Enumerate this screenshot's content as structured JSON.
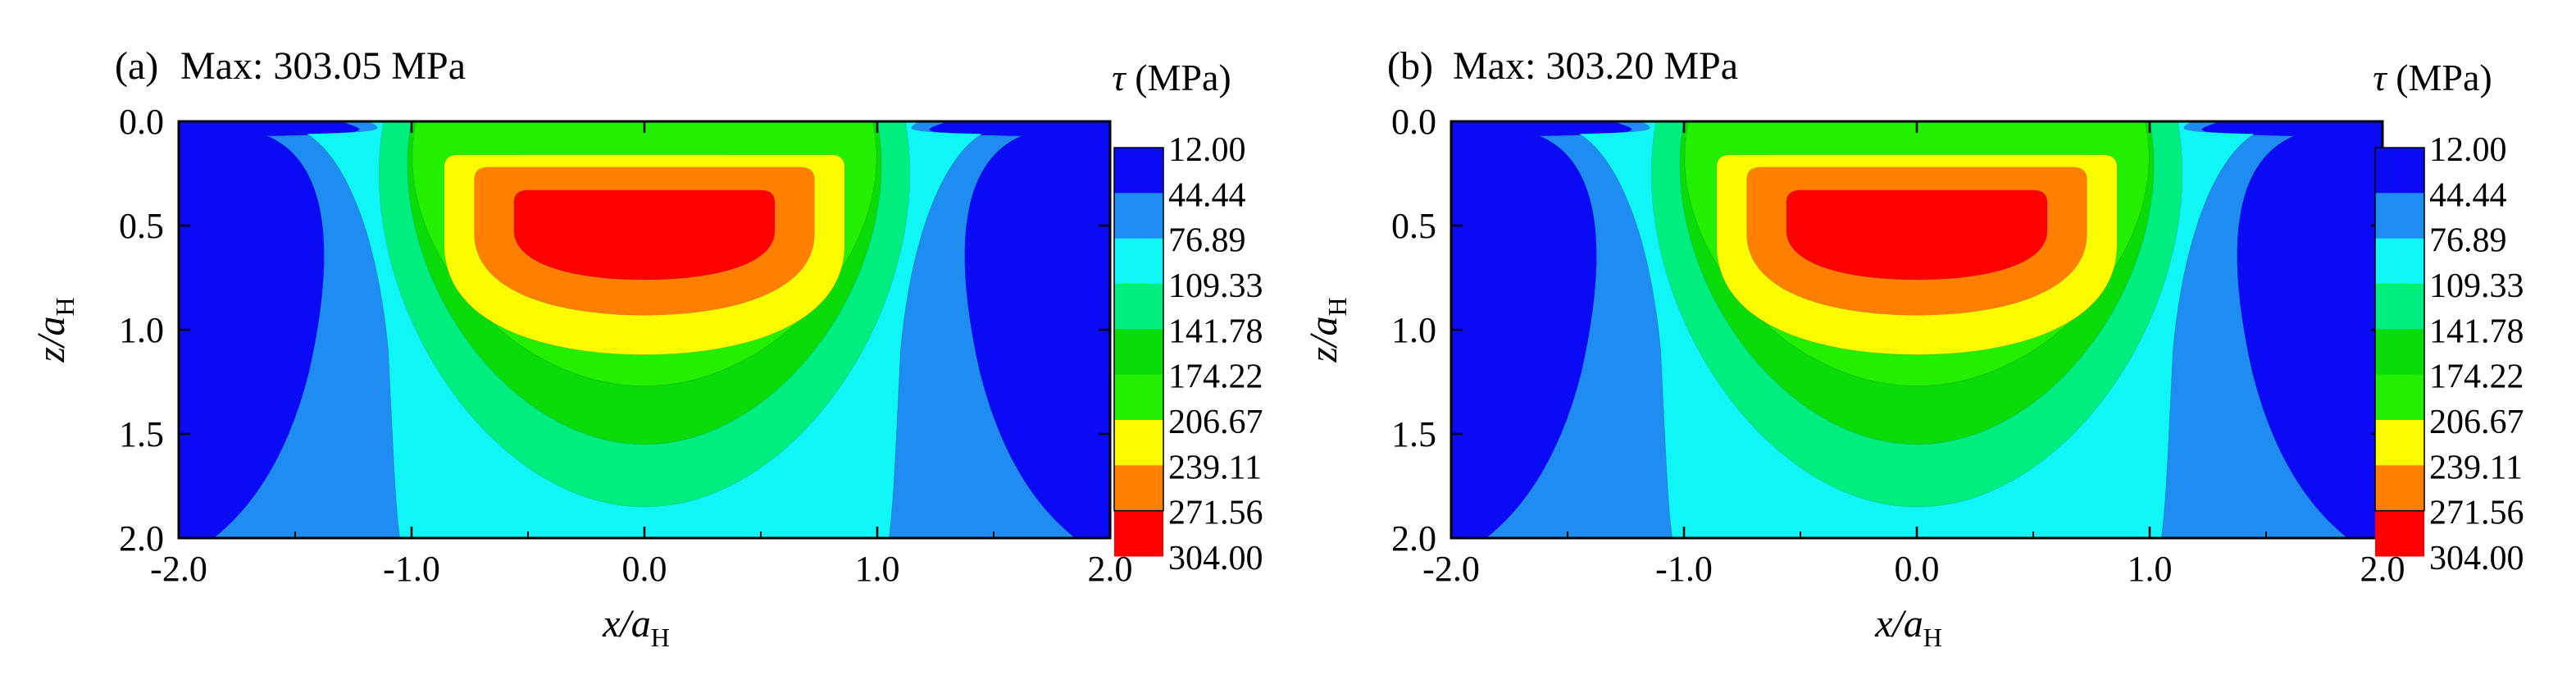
{
  "chart_data": [
    {
      "type": "heatmap",
      "panel_label": "(a)",
      "title": "Max: 303.05 MPa",
      "max_value": 303.05,
      "xlabel": {
        "base": "x/a",
        "sub": "H"
      },
      "ylabel": {
        "base": "z/a",
        "sub": "H"
      },
      "xlim": [
        -2.0,
        2.0
      ],
      "ylim": [
        0.0,
        2.0
      ],
      "y_inverted": true,
      "xticks": [
        "-2.0",
        "-1.0",
        "0.0",
        "1.0",
        "2.0"
      ],
      "yticks": [
        "0.0",
        "0.5",
        "1.0",
        "1.5",
        "2.0"
      ],
      "colorbar": {
        "title": {
          "symbol": "τ",
          "unit": "(MPa)"
        },
        "levels": [
          "12.00",
          "44.44",
          "76.89",
          "109.33",
          "141.78",
          "174.22",
          "206.67",
          "239.11",
          "271.56",
          "304.00"
        ],
        "colors": [
          "#0a0af5",
          "#1e8cf0",
          "#10f5f5",
          "#00ee80",
          "#0adc0a",
          "#22f000",
          "#fafa00",
          "#ff8000",
          "#ff0000",
          "#ff0000"
        ]
      },
      "contours": [
        {
          "level": "44.44",
          "color": "#1e8cf0",
          "tx": [
            -1.85,
            1.85
          ],
          "top": 0.07,
          "top_slope": 0.25,
          "bottom": 2.0,
          "bottom_slope": 0.6,
          "x_bottom": [
            -1.6,
            1.6
          ]
        },
        {
          "level": "76.89",
          "color": "#10f5f5",
          "x_top": [
            -1.28,
            1.28
          ],
          "bottom": 2.0,
          "x_bottom": [
            -1.05,
            1.05
          ],
          "depth_max": 2.0
        },
        {
          "level": "109.33",
          "color": "#00ee80",
          "x_top": [
            -1.12,
            1.12
          ],
          "depth": 1.85
        },
        {
          "level": "141.78",
          "color": "#0adc0a",
          "x_top": [
            -1.0,
            1.0
          ],
          "depth": 1.55
        },
        {
          "level": "174.22",
          "color": "#22f000",
          "x_top": [
            -0.98,
            0.98
          ],
          "depth": 1.27
        },
        {
          "level": "206.67",
          "color": "#fafa00",
          "x_top": [
            -0.86,
            0.86
          ],
          "top": 0.16,
          "depth": 1.12
        },
        {
          "level": "239.11",
          "color": "#ff8000",
          "x_top": [
            -0.73,
            0.73
          ],
          "top": 0.22,
          "depth": 0.93
        },
        {
          "level": "271.56",
          "color": "#ff0000",
          "x_top": [
            -0.56,
            0.56
          ],
          "top": 0.33,
          "depth": 0.76
        }
      ]
    },
    {
      "type": "heatmap",
      "panel_label": "(b)",
      "title": "Max: 303.20 MPa",
      "max_value": 303.2,
      "xlabel": {
        "base": "x/a",
        "sub": "H"
      },
      "ylabel": {
        "base": "z/a",
        "sub": "H"
      },
      "xlim": [
        -2.0,
        2.0
      ],
      "ylim": [
        0.0,
        2.0
      ],
      "y_inverted": true,
      "xticks": [
        "-2.0",
        "-1.0",
        "0.0",
        "1.0",
        "2.0"
      ],
      "yticks": [
        "0.0",
        "0.5",
        "1.0",
        "1.5",
        "2.0"
      ],
      "colorbar": {
        "title": {
          "symbol": "τ",
          "unit": "(MPa)"
        },
        "levels": [
          "12.00",
          "44.44",
          "76.89",
          "109.33",
          "141.78",
          "174.22",
          "206.67",
          "239.11",
          "271.56",
          "304.00"
        ],
        "colors": [
          "#0a0af5",
          "#1e8cf0",
          "#10f5f5",
          "#00ee80",
          "#0adc0a",
          "#22f000",
          "#fafa00",
          "#ff8000",
          "#ff0000",
          "#ff0000"
        ]
      },
      "contours": [
        {
          "level": "44.44",
          "color": "#1e8cf0",
          "tx": [
            -1.85,
            1.85
          ],
          "top": 0.07,
          "top_slope": 0.25,
          "bottom": 2.0,
          "bottom_slope": 0.6,
          "x_bottom": [
            -1.6,
            1.6
          ]
        },
        {
          "level": "76.89",
          "color": "#10f5f5",
          "x_top": [
            -1.28,
            1.28
          ],
          "bottom": 2.0,
          "x_bottom": [
            -1.05,
            1.05
          ],
          "depth_max": 2.0
        },
        {
          "level": "109.33",
          "color": "#00ee80",
          "x_top": [
            -1.12,
            1.12
          ],
          "depth": 1.85
        },
        {
          "level": "141.78",
          "color": "#0adc0a",
          "x_top": [
            -1.0,
            1.0
          ],
          "depth": 1.55
        },
        {
          "level": "174.22",
          "color": "#22f000",
          "x_top": [
            -0.98,
            0.98
          ],
          "depth": 1.27
        },
        {
          "level": "206.67",
          "color": "#fafa00",
          "x_top": [
            -0.86,
            0.86
          ],
          "top": 0.16,
          "depth": 1.12
        },
        {
          "level": "239.11",
          "color": "#ff8000",
          "x_top": [
            -0.73,
            0.73
          ],
          "top": 0.22,
          "depth": 0.93
        },
        {
          "level": "271.56",
          "color": "#ff0000",
          "x_top": [
            -0.56,
            0.56
          ],
          "top": 0.33,
          "depth": 0.76
        }
      ]
    }
  ]
}
